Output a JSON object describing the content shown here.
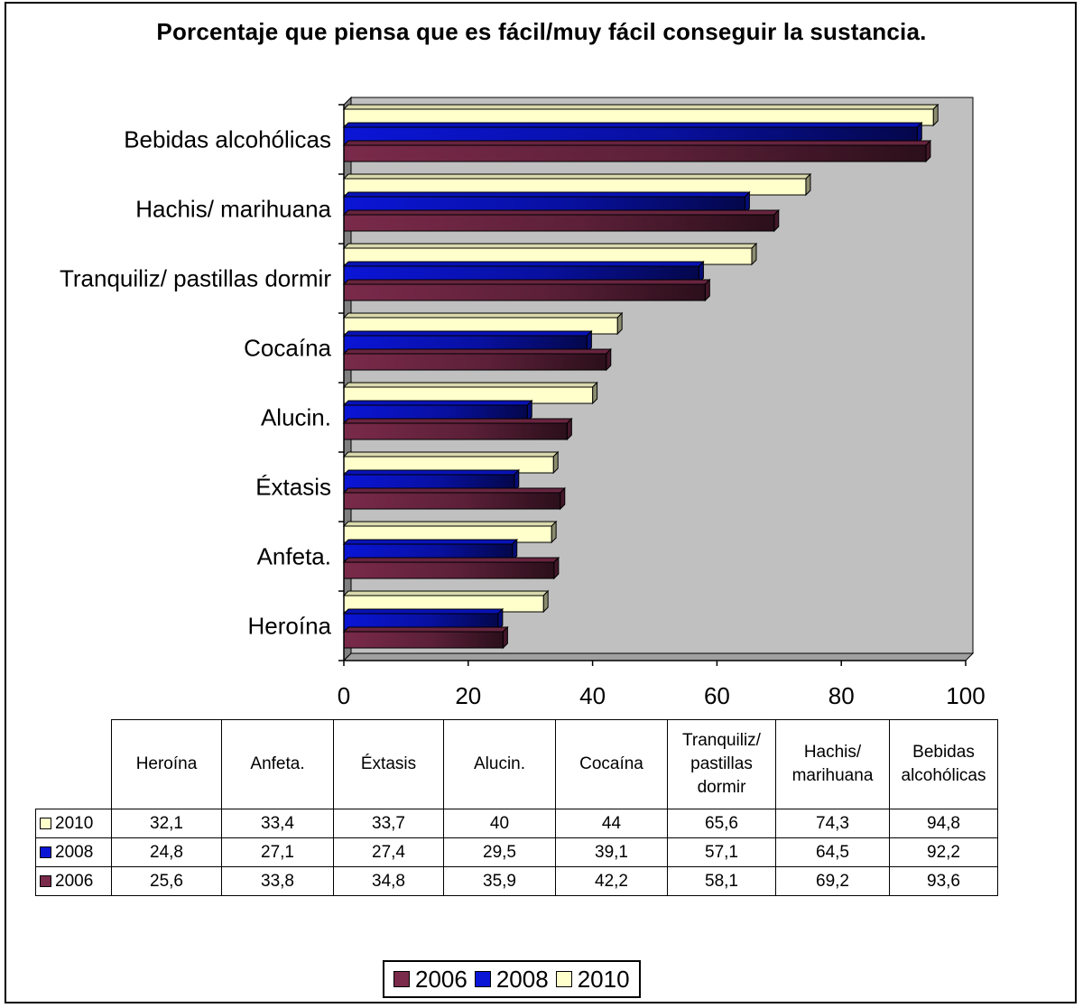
{
  "chart_data": {
    "type": "bar",
    "orientation": "horizontal",
    "title": "Porcentaje que piensa que es fácil/muy fácil conseguir la sustancia.",
    "categories": [
      "Heroína",
      "Anfeta.",
      "Éxtasis",
      "Alucin.",
      "Cocaína",
      "Tranquiliz/ pastillas dormir",
      "Hachis/ marihuana",
      "Bebidas alcohólicas"
    ],
    "table_headers": [
      [
        "Heroína"
      ],
      [
        "Anfeta."
      ],
      [
        "Éxtasis"
      ],
      [
        "Alucin."
      ],
      [
        "Cocaína"
      ],
      [
        "Tranquiliz/",
        "pastillas",
        "dormir"
      ],
      [
        "Hachis/",
        "marihuana"
      ],
      [
        "Bebidas",
        "alcohólicas"
      ]
    ],
    "series": [
      {
        "name": "2006",
        "color": "#7a2a4a",
        "values": [
          25.6,
          33.8,
          34.8,
          35.9,
          42.2,
          58.1,
          69.2,
          93.6
        ],
        "labels": [
          "25,6",
          "33,8",
          "34,8",
          "35,9",
          "42,2",
          "58,1",
          "69,2",
          "93,6"
        ]
      },
      {
        "name": "2008",
        "color": "#0b15d6",
        "values": [
          24.8,
          27.1,
          27.4,
          29.5,
          39.1,
          57.1,
          64.5,
          92.2
        ],
        "labels": [
          "24,8",
          "27,1",
          "27,4",
          "29,5",
          "39,1",
          "57,1",
          "64,5",
          "92,2"
        ]
      },
      {
        "name": "2010",
        "color": "#ffffcc",
        "values": [
          32.1,
          33.4,
          33.7,
          40,
          44,
          65.6,
          74.3,
          94.8
        ],
        "labels": [
          "32,1",
          "33,4",
          "33,7",
          "40",
          "44",
          "65,6",
          "74,3",
          "94,8"
        ]
      }
    ],
    "table_row_order": [
      "2010",
      "2008",
      "2006"
    ],
    "xlim": [
      0,
      100
    ],
    "x_ticks": [
      "0",
      "20",
      "40",
      "60",
      "80",
      "100"
    ],
    "grid": false,
    "wall_color": "#c0c0c0",
    "legend_position": "bottom",
    "legend_order": [
      "2006",
      "2008",
      "2010"
    ]
  }
}
